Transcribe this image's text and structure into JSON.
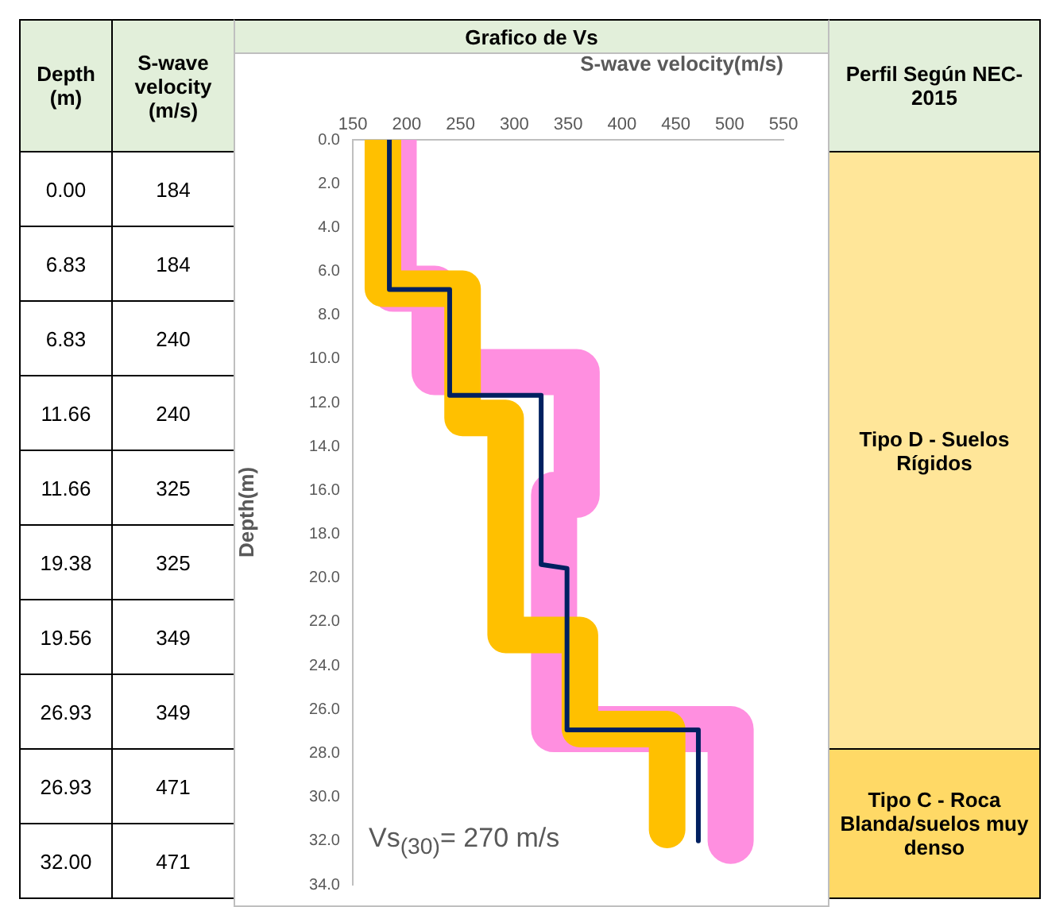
{
  "chart_data": [
    {
      "type": "line",
      "title": "Grafico de Vs",
      "xlabel": "S-wave velocity(m/s)",
      "ylabel": "Depth(m)",
      "xlim": [
        150,
        550
      ],
      "xticks": [
        150,
        200,
        250,
        300,
        350,
        400,
        450,
        500,
        550
      ],
      "ylim": [
        34,
        0
      ],
      "yticks": [
        {
          "value": 0,
          "label": "0.0"
        },
        {
          "value": 2,
          "label": "2.0"
        },
        {
          "value": 4,
          "label": "4.0"
        },
        {
          "value": 6,
          "label": "6.0"
        },
        {
          "value": 8,
          "label": "8.0"
        },
        {
          "value": 10,
          "label": "10.0"
        },
        {
          "value": 12,
          "label": "12.0"
        },
        {
          "value": 14,
          "label": "14.0"
        },
        {
          "value": 16,
          "label": "16.0"
        },
        {
          "value": 18,
          "label": "18.0"
        },
        {
          "value": 20,
          "label": "20.0"
        },
        {
          "value": 22,
          "label": "22.0"
        },
        {
          "value": 24,
          "label": "24.0"
        },
        {
          "value": 26,
          "label": "26.0"
        },
        {
          "value": 28,
          "label": "28.0"
        },
        {
          "value": 30,
          "label": "30.0"
        },
        {
          "value": 32,
          "label": "32.0"
        },
        {
          "value": 34,
          "label": "34.0"
        }
      ],
      "series": [
        {
          "color": "#ff8fe0",
          "x": [
            188,
            188,
            226,
            226,
            358,
            358,
            337,
            337,
            501,
            501
          ],
          "values": [
            0,
            6.8,
            6.8,
            10.6,
            10.6,
            16.2,
            16.2,
            26.9,
            26.9,
            32
          ]
        },
        {
          "color": "#ffc000",
          "x": [
            178,
            178,
            252,
            252,
            292,
            292,
            361,
            361,
            442,
            442
          ],
          "values": [
            0,
            6.8,
            6.8,
            12.7,
            12.7,
            22.6,
            22.6,
            26.9,
            26.9,
            31.5
          ]
        },
        {
          "color": "#002060",
          "x": [
            184,
            184,
            240,
            240,
            325,
            325,
            349,
            349,
            471,
            471
          ],
          "values": [
            0,
            6.83,
            6.83,
            11.66,
            11.66,
            19.38,
            19.56,
            26.93,
            26.93,
            32
          ]
        }
      ],
      "annotations": [
        "Vs$_{(30)}$= 270 m/s"
      ],
      "grid": false,
      "legend": false
    },
    {
      "type": "other",
      "annotations": [
        "Depth (m)",
        "S-wave velocity (m/s)",
        "Perfil Según NEC-2015",
        "0.00",
        "184",
        "6.83",
        "184",
        "6.83",
        "240",
        "11.66",
        "240",
        "11.66",
        "325",
        "19.38",
        "325",
        "19.56",
        "349",
        "26.93",
        "349",
        "26.93",
        "471",
        "32.00",
        "471",
        "Tipo D - Suelos Rígidos",
        "Tipo C - Roca Blanda/suelos muy denso"
      ]
    }
  ]
}
